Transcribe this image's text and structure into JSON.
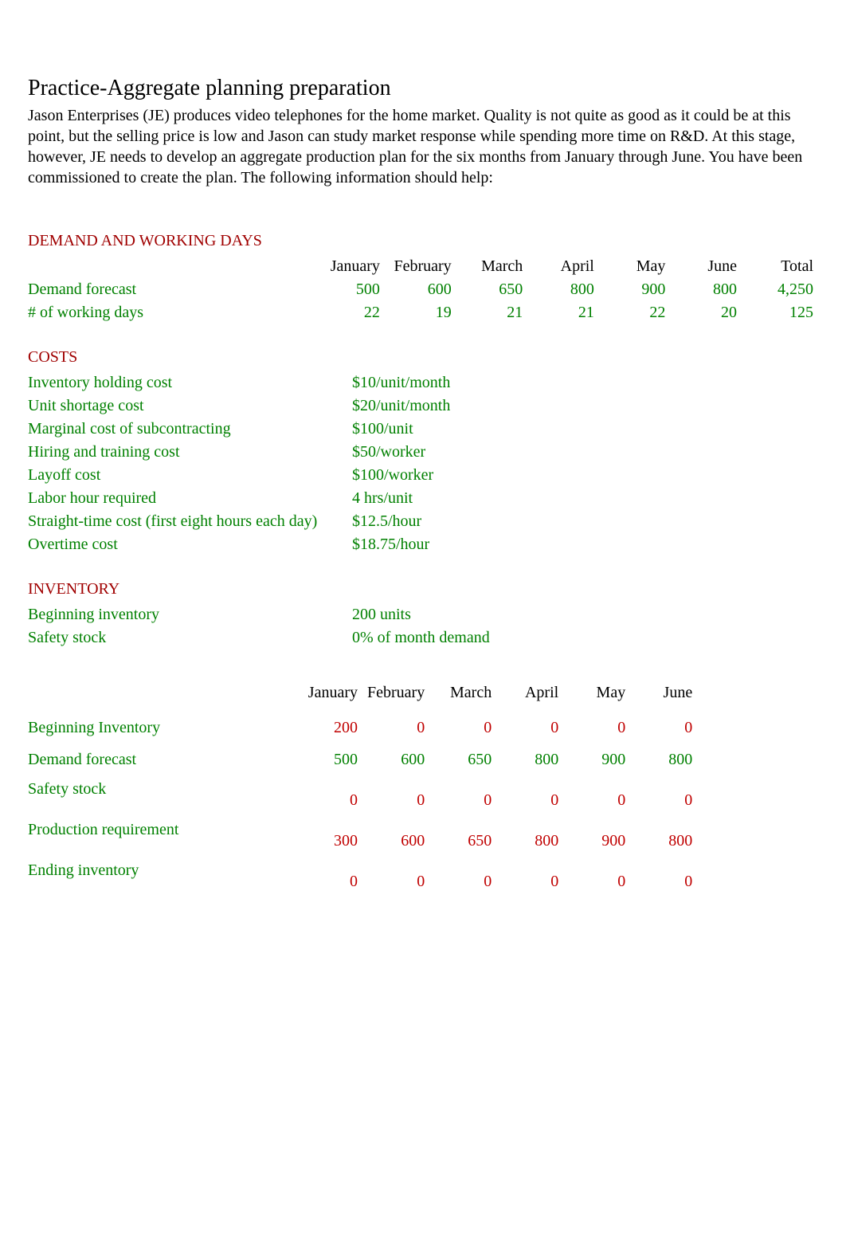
{
  "title": "Practice-Aggregate planning preparation",
  "intro": "Jason Enterprises (JE) produces video telephones for the home market. Quality is not quite as good as it could be at this point, but the selling price is low and Jason can study market response while spending more time on R&D. At this stage, however, JE needs to develop an aggregate production plan for the six months from January through June. You have been commissioned to create the plan. The following information should help:",
  "sections": {
    "demand_header": "DEMAND AND WORKING DAYS",
    "costs_header": "COSTS",
    "inventory_header": "INVENTORY"
  },
  "months": [
    "January",
    "February",
    "March",
    "April",
    "May",
    "June"
  ],
  "total_label": "Total",
  "demand_table": {
    "rows": [
      {
        "label": "Demand forecast",
        "values": [
          "500",
          "600",
          "650",
          "800",
          "900",
          "800"
        ],
        "total": "4,250"
      },
      {
        "label": "# of working days",
        "values": [
          "22",
          "19",
          "21",
          "21",
          "22",
          "20"
        ],
        "total": "125"
      }
    ]
  },
  "costs": [
    {
      "label": "Inventory holding cost",
      "value": "$10/unit/month"
    },
    {
      "label": "Unit shortage cost",
      "value": "$20/unit/month"
    },
    {
      "label": "Marginal cost of subcontracting",
      "value": "$100/unit"
    },
    {
      "label": "Hiring and training cost",
      "value": "$50/worker"
    },
    {
      "label": "Layoff cost",
      "value": "$100/worker"
    },
    {
      "label": "Labor hour required",
      "value": "4 hrs/unit"
    },
    {
      "label": "Straight-time cost (first eight hours each day)",
      "value": "$12.5/hour"
    },
    {
      "label": "Overtime cost",
      "value": "$18.75/hour"
    }
  ],
  "inventory": [
    {
      "label": "Beginning inventory",
      "value": "200 units"
    },
    {
      "label": "Safety stock",
      "value": "0% of month demand"
    }
  ],
  "lower_table": {
    "rows": [
      {
        "label": "Beginning Inventory",
        "values": [
          "200",
          "0",
          "0",
          "0",
          "0",
          "0"
        ],
        "color": "red",
        "label_color": "green"
      },
      {
        "label": "Demand forecast",
        "values": [
          "500",
          "600",
          "650",
          "800",
          "900",
          "800"
        ],
        "color": "green",
        "label_color": "green"
      },
      {
        "label": "Safety stock",
        "values": [
          "0",
          "0",
          "0",
          "0",
          "0",
          "0"
        ],
        "color": "red",
        "label_color": "green"
      },
      {
        "label": "Production requirement",
        "values": [
          "300",
          "600",
          "650",
          "800",
          "900",
          "800"
        ],
        "color": "red",
        "label_color": "green"
      },
      {
        "label": "Ending inventory",
        "values": [
          "0",
          "0",
          "0",
          "0",
          "0",
          "0"
        ],
        "color": "red",
        "label_color": "green"
      }
    ]
  },
  "colors": {
    "section_header": "#a00000",
    "green": "#008000",
    "red": "#c00000",
    "black": "#000000",
    "background": "#ffffff"
  },
  "typography": {
    "body_font": "Times New Roman",
    "title_size": 28,
    "body_size": 20
  }
}
